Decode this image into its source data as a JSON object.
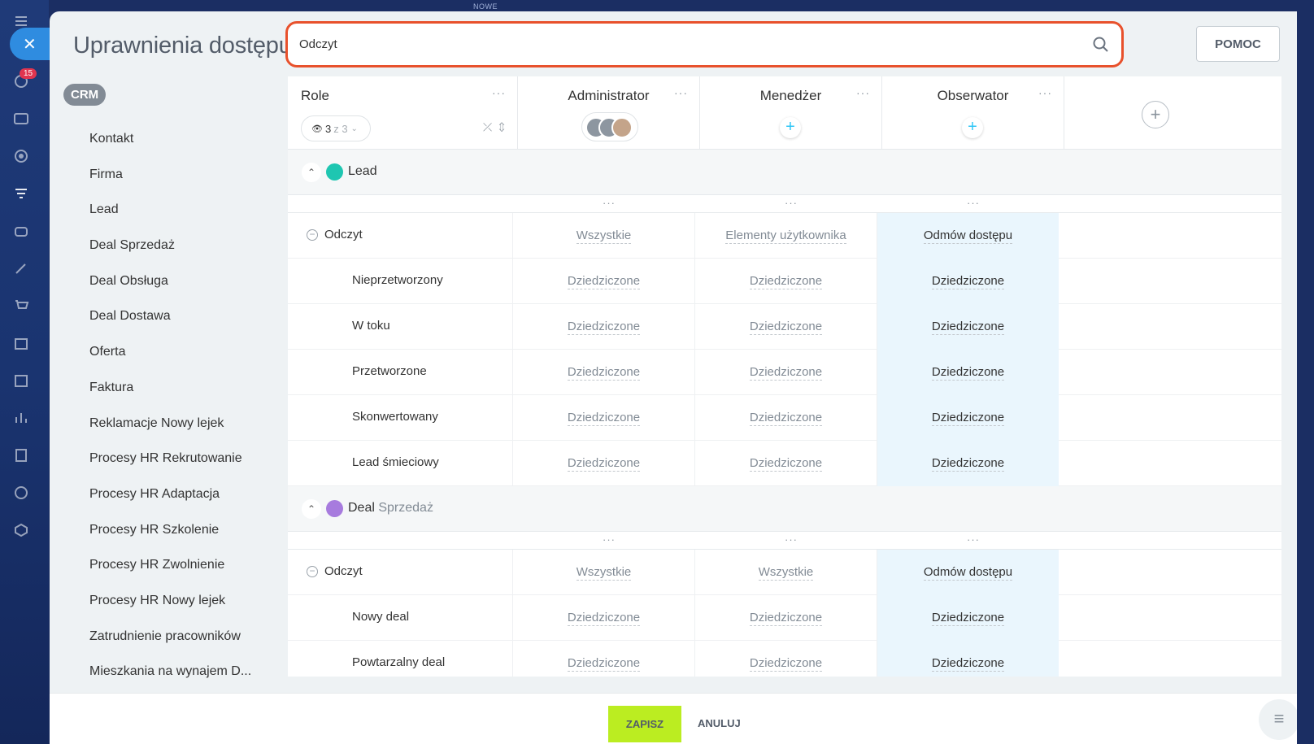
{
  "app": {
    "top_tag": "NOWE",
    "notifications_badge": "15"
  },
  "page": {
    "title": "Uprawnienia dostępu"
  },
  "search": {
    "value": "Odczyt",
    "placeholder": ""
  },
  "help_button": "POMOC",
  "nav": {
    "tag": "CRM",
    "items": [
      "Kontakt",
      "Firma",
      "Lead",
      "Deal Sprzedaż",
      "Deal Obsługa",
      "Deal Dostawa",
      "Oferta",
      "Faktura",
      "Reklamacje Nowy lejek",
      "Procesy HR Rekrutowanie",
      "Procesy HR Adaptacja",
      "Procesy HR Szkolenie",
      "Procesy HR Zwolnienie",
      "Procesy HR Nowy lejek",
      "Zatrudnienie pracowników",
      "Mieszkania na wynajem D..."
    ]
  },
  "table": {
    "roles_header": "Role",
    "roles_filter": {
      "count": "3",
      "of": "z 3"
    },
    "columns": [
      "Administrator",
      "Menedżer",
      "Obserwator"
    ],
    "sections": [
      {
        "title": "Lead",
        "subtitle": "",
        "icon_color": "#1ec6b1",
        "rows": [
          {
            "label": "Odczyt",
            "group": true,
            "values": [
              "Wszystkie",
              "Elementy użytkownika",
              "Odmów dostępu"
            ]
          },
          {
            "label": "Nieprzetworzony",
            "values": [
              "Dziedziczone",
              "Dziedziczone",
              "Dziedziczone"
            ]
          },
          {
            "label": "W toku",
            "values": [
              "Dziedziczone",
              "Dziedziczone",
              "Dziedziczone"
            ]
          },
          {
            "label": "Przetworzone",
            "values": [
              "Dziedziczone",
              "Dziedziczone",
              "Dziedziczone"
            ]
          },
          {
            "label": "Skonwertowany",
            "values": [
              "Dziedziczone",
              "Dziedziczone",
              "Dziedziczone"
            ]
          },
          {
            "label": "Lead śmieciowy",
            "values": [
              "Dziedziczone",
              "Dziedziczone",
              "Dziedziczone"
            ]
          }
        ]
      },
      {
        "title": "Deal",
        "subtitle": "Sprzedaż",
        "icon_color": "#a77bde",
        "rows": [
          {
            "label": "Odczyt",
            "group": true,
            "values": [
              "Wszystkie",
              "Wszystkie",
              "Odmów dostępu"
            ]
          },
          {
            "label": "Nowy deal",
            "values": [
              "Dziedziczone",
              "Dziedziczone",
              "Dziedziczone"
            ]
          },
          {
            "label": "Powtarzalny deal",
            "values": [
              "Dziedziczone",
              "Dziedziczone",
              "Dziedziczone"
            ]
          }
        ]
      }
    ]
  },
  "footer": {
    "save": "ZAPISZ",
    "cancel": "ANULUJ"
  },
  "colors": {
    "accent_search_border": "#e8512c",
    "save_button": "#bbed21",
    "highlight_column": "#eaf6fd"
  }
}
